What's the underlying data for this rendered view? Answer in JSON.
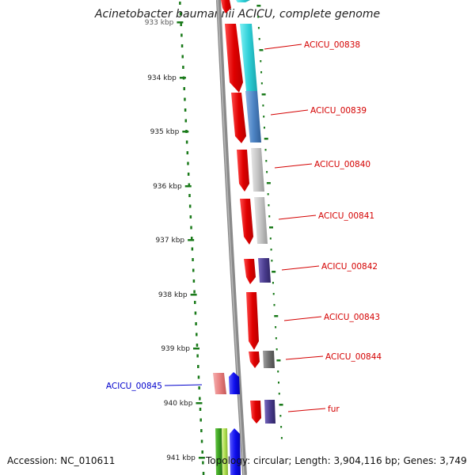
{
  "title": "Acinetobacter baumannii ACICU, complete genome",
  "accession_text": "Accession: NC_010611",
  "summary_text": "Topology: circular; Length: 3,904,116 bp; Genes: 3,749",
  "ticks": [
    {
      "label": "933 kbp",
      "partial": true
    },
    {
      "label": "934 kbp"
    },
    {
      "label": "935 kbp"
    },
    {
      "label": "936 kbp"
    },
    {
      "label": "937 kbp"
    },
    {
      "label": "938 kbp"
    },
    {
      "label": "939 kbp"
    },
    {
      "label": "940 kbp"
    },
    {
      "label": "941 kbp"
    }
  ],
  "gene_labels": [
    {
      "text": "ACICU_00838",
      "strand": "forward",
      "color": "#d40000"
    },
    {
      "text": "ACICU_00839",
      "strand": "forward",
      "color": "#d40000"
    },
    {
      "text": "ACICU_00840",
      "strand": "forward",
      "color": "#d40000"
    },
    {
      "text": "ACICU_00841",
      "strand": "forward",
      "color": "#d40000"
    },
    {
      "text": "ACICU_00842",
      "strand": "forward",
      "color": "#d40000"
    },
    {
      "text": "ACICU_00843",
      "strand": "forward",
      "color": "#d40000"
    },
    {
      "text": "ACICU_00844",
      "strand": "forward",
      "color": "#d40000"
    },
    {
      "text": "ACICU_00845",
      "strand": "reverse",
      "color": "#0000cc"
    },
    {
      "text": "fur",
      "strand": "forward",
      "color": "#d40000"
    }
  ],
  "colors": {
    "backbone": "#8a8a8a",
    "tick": "#1a7a1a",
    "forward_label": "#d40000",
    "reverse_label": "#0000cc",
    "cds_red": "#e60000",
    "cyan": "#2fd0d8",
    "steel_blue": "#4f86c6",
    "light_gray": "#c4c4c4",
    "purple": "#4b3d8f",
    "dark_gray": "#707070",
    "pink": "#e88080",
    "blue": "#1010ee",
    "green": "#3aa020",
    "yellow_green": "#b0e050"
  }
}
